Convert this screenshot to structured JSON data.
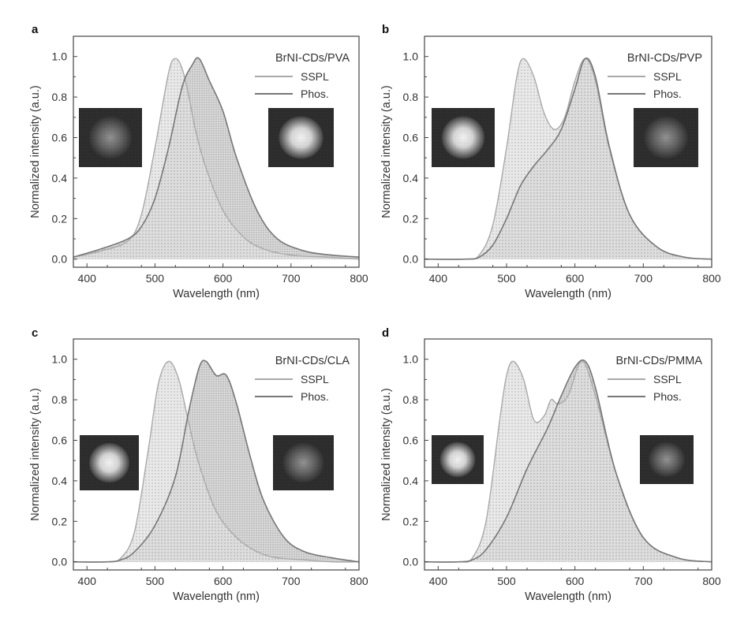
{
  "figure": {
    "colors": {
      "sspl": "#a9a9a9",
      "phos": "#777777",
      "axis": "#444444",
      "fill_sspl": "#d0d0d0",
      "fill_phos": "#bdbdbd"
    }
  },
  "chart_data": [
    {
      "panel": "a",
      "type": "area",
      "title": "BrNI-CDs/PVA",
      "xlabel": "Wavelength (nm)",
      "ylabel": "Normalized intensity (a.u.)",
      "xlim": [
        380,
        800
      ],
      "ylim": [
        -0.04,
        1.1
      ],
      "xticks": [
        400,
        500,
        600,
        700,
        800
      ],
      "yticks": [
        "0.0",
        "0.2",
        "0.4",
        "0.6",
        "0.8",
        "1.0"
      ],
      "legend_position": "top-right",
      "insets": [
        "dim orange emission photo (left)",
        "bright orange emission photo (right)"
      ],
      "series": [
        {
          "name": "SSPL",
          "x": [
            380,
            420,
            460,
            480,
            500,
            520,
            530,
            540,
            550,
            560,
            575,
            600,
            630,
            660,
            700,
            750,
            800
          ],
          "y": [
            0.01,
            0.04,
            0.09,
            0.22,
            0.55,
            0.92,
            0.99,
            0.94,
            0.8,
            0.63,
            0.45,
            0.24,
            0.11,
            0.05,
            0.02,
            0.01,
            0.0
          ]
        },
        {
          "name": "Phos.",
          "x": [
            380,
            420,
            460,
            480,
            500,
            520,
            540,
            555,
            565,
            580,
            600,
            620,
            650,
            680,
            720,
            760,
            800
          ],
          "y": [
            0.01,
            0.05,
            0.1,
            0.16,
            0.3,
            0.55,
            0.85,
            0.96,
            0.99,
            0.88,
            0.73,
            0.5,
            0.24,
            0.1,
            0.04,
            0.02,
            0.01
          ]
        }
      ]
    },
    {
      "panel": "b",
      "type": "area",
      "title": "BrNI-CDs/PVP",
      "xlabel": "Wavelength (nm)",
      "ylabel": "Normalized intensity (a.u.)",
      "xlim": [
        380,
        800
      ],
      "ylim": [
        -0.04,
        1.1
      ],
      "xticks": [
        400,
        500,
        600,
        700,
        800
      ],
      "yticks": [
        "0.0",
        "0.2",
        "0.4",
        "0.6",
        "0.8",
        "1.0"
      ],
      "legend_position": "top-right",
      "insets": [
        "bright emission photo (left)",
        "dim emission photo (right)"
      ],
      "series": [
        {
          "name": "SSPL",
          "x": [
            380,
            440,
            460,
            480,
            500,
            515,
            525,
            540,
            555,
            570,
            585,
            600,
            615,
            630,
            650,
            680,
            720,
            760,
            800
          ],
          "y": [
            0.0,
            0.0,
            0.02,
            0.17,
            0.55,
            0.9,
            0.99,
            0.9,
            0.72,
            0.64,
            0.7,
            0.88,
            0.99,
            0.88,
            0.55,
            0.22,
            0.06,
            0.01,
            0.0
          ]
        },
        {
          "name": "Phos.",
          "x": [
            380,
            440,
            460,
            480,
            500,
            520,
            540,
            560,
            580,
            600,
            615,
            630,
            650,
            680,
            720,
            760,
            800
          ],
          "y": [
            0.0,
            0.0,
            0.01,
            0.07,
            0.2,
            0.36,
            0.46,
            0.54,
            0.64,
            0.84,
            0.99,
            0.9,
            0.56,
            0.22,
            0.06,
            0.01,
            0.0
          ]
        }
      ]
    },
    {
      "panel": "c",
      "type": "area",
      "title": "BrNI-CDs/CLA",
      "xlabel": "Wavelength (nm)",
      "ylabel": "Normalized intensity (a.u.)",
      "xlim": [
        380,
        800
      ],
      "ylim": [
        -0.04,
        1.1
      ],
      "xticks": [
        400,
        500,
        600,
        700,
        800
      ],
      "yticks": [
        "0.0",
        "0.2",
        "0.4",
        "0.6",
        "0.8",
        "1.0"
      ],
      "legend_position": "top-right",
      "insets": [
        "bright emission photo (left)",
        "dim emission photo (right)"
      ],
      "series": [
        {
          "name": "SSPL",
          "x": [
            380,
            430,
            450,
            470,
            490,
            505,
            520,
            535,
            550,
            565,
            590,
            620,
            650,
            680,
            720,
            760,
            800
          ],
          "y": [
            0.0,
            0.0,
            0.02,
            0.15,
            0.55,
            0.88,
            0.99,
            0.9,
            0.68,
            0.48,
            0.25,
            0.12,
            0.05,
            0.02,
            0.01,
            0.0,
            0.0
          ]
        },
        {
          "name": "Phos.",
          "x": [
            380,
            430,
            450,
            470,
            500,
            530,
            550,
            565,
            575,
            590,
            605,
            620,
            640,
            660,
            690,
            720,
            760,
            800
          ],
          "y": [
            0.0,
            0.0,
            0.01,
            0.05,
            0.18,
            0.42,
            0.75,
            0.96,
            0.99,
            0.92,
            0.92,
            0.78,
            0.52,
            0.3,
            0.12,
            0.05,
            0.02,
            0.0
          ]
        }
      ]
    },
    {
      "panel": "d",
      "type": "area",
      "title": "BrNI-CDs/PMMA",
      "xlabel": "Wavelength (nm)",
      "ylabel": "Normalized intensity (a.u.)",
      "xlim": [
        380,
        800
      ],
      "ylim": [
        -0.04,
        1.1
      ],
      "xticks": [
        400,
        500,
        600,
        700,
        800
      ],
      "yticks": [
        "0.0",
        "0.2",
        "0.4",
        "0.6",
        "0.8",
        "1.0"
      ],
      "legend_position": "top-right",
      "insets": [
        "bright emission photo (left)",
        "dim emission photo (right)"
      ],
      "series": [
        {
          "name": "SSPL",
          "x": [
            380,
            430,
            450,
            470,
            490,
            500,
            510,
            525,
            540,
            555,
            565,
            575,
            590,
            610,
            630,
            660,
            700,
            750,
            800
          ],
          "y": [
            0.0,
            0.0,
            0.02,
            0.2,
            0.7,
            0.92,
            0.99,
            0.9,
            0.7,
            0.72,
            0.8,
            0.78,
            0.82,
            0.99,
            0.82,
            0.44,
            0.12,
            0.02,
            0.0
          ]
        },
        {
          "name": "Phos.",
          "x": [
            380,
            430,
            450,
            470,
            500,
            530,
            560,
            580,
            600,
            615,
            630,
            660,
            700,
            750,
            800
          ],
          "y": [
            0.0,
            0.0,
            0.01,
            0.06,
            0.22,
            0.46,
            0.66,
            0.82,
            0.96,
            0.99,
            0.86,
            0.44,
            0.12,
            0.02,
            0.0
          ]
        }
      ]
    }
  ]
}
